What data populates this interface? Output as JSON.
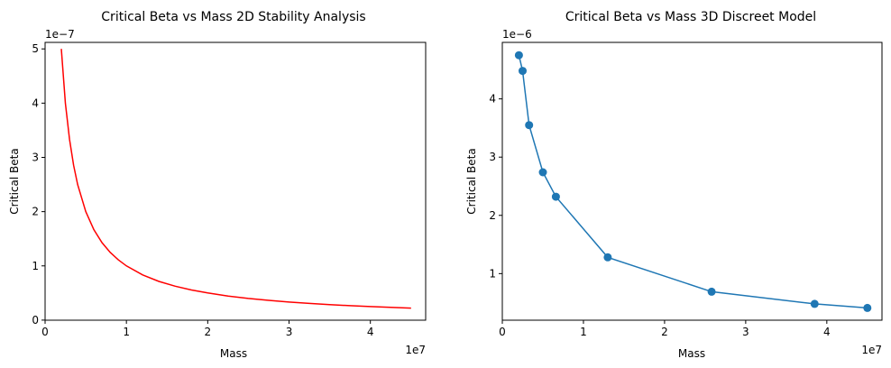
{
  "chart_data": [
    {
      "type": "line",
      "title": "Critical Beta vs Mass 2D Stability Analysis",
      "xlabel": "Mass",
      "ylabel": "Critical Beta",
      "x_offset_label": "1e7",
      "y_offset_label": "1e−7",
      "xlim": [
        0,
        46800000
      ],
      "ylim": [
        -1.5e-10,
        5.12e-07
      ],
      "x_ticks": [
        0,
        10000000.0,
        20000000.0,
        30000000.0,
        40000000.0
      ],
      "x_tick_labels": [
        "0",
        "1",
        "2",
        "3",
        "4"
      ],
      "y_ticks": [
        0,
        1e-07,
        2e-07,
        3e-07,
        4e-07,
        5e-07
      ],
      "y_tick_labels": [
        "0",
        "1",
        "2",
        "3",
        "4",
        "5"
      ],
      "grid": false,
      "series": [
        {
          "color": "#ff0000",
          "marker": "none",
          "x": [
            2000000,
            2500000,
            3000000,
            3500000,
            4000000,
            5000000,
            6000000,
            7000000,
            8000000,
            9000000,
            10000000,
            12000000,
            14000000,
            16000000,
            18000000,
            20000000,
            22500000,
            25000000,
            27500000,
            30000000,
            32500000,
            35000000,
            37500000,
            40000000,
            42500000,
            45000000
          ],
          "y": [
            5e-07,
            4e-07,
            3.333e-07,
            2.857e-07,
            2.5e-07,
            2e-07,
            1.667e-07,
            1.429e-07,
            1.25e-07,
            1.111e-07,
            1e-07,
            8.33e-08,
            7.14e-08,
            6.25e-08,
            5.56e-08,
            5e-08,
            4.44e-08,
            4e-08,
            3.64e-08,
            3.33e-08,
            3.08e-08,
            2.86e-08,
            2.67e-08,
            2.5e-08,
            2.35e-08,
            2.22e-08
          ]
        }
      ]
    },
    {
      "type": "line",
      "title": "Critical Beta vs Mass 3D Discreet Model",
      "xlabel": "Mass",
      "ylabel": "Critical Beta",
      "x_offset_label": "1e7",
      "y_offset_label": "1e−6",
      "xlim": [
        0,
        46800000
      ],
      "ylim": [
        2e-07,
        4.97e-06
      ],
      "x_ticks": [
        0,
        10000000.0,
        20000000.0,
        30000000.0,
        40000000.0
      ],
      "x_tick_labels": [
        "0",
        "1",
        "2",
        "3",
        "4"
      ],
      "y_ticks": [
        1e-06,
        2e-06,
        3e-06,
        4e-06
      ],
      "y_tick_labels": [
        "1",
        "2",
        "3",
        "4"
      ],
      "grid": false,
      "series": [
        {
          "color": "#1f77b4",
          "marker": "circle",
          "x": [
            2050000,
            2500000,
            3300000,
            5000000,
            6600000,
            13000000,
            25800000,
            38500000,
            45000000
          ],
          "y": [
            4.75e-06,
            4.48e-06,
            3.55e-06,
            2.74e-06,
            2.32e-06,
            1.28e-06,
            6.9e-07,
            4.8e-07,
            4.1e-07
          ]
        }
      ]
    }
  ]
}
